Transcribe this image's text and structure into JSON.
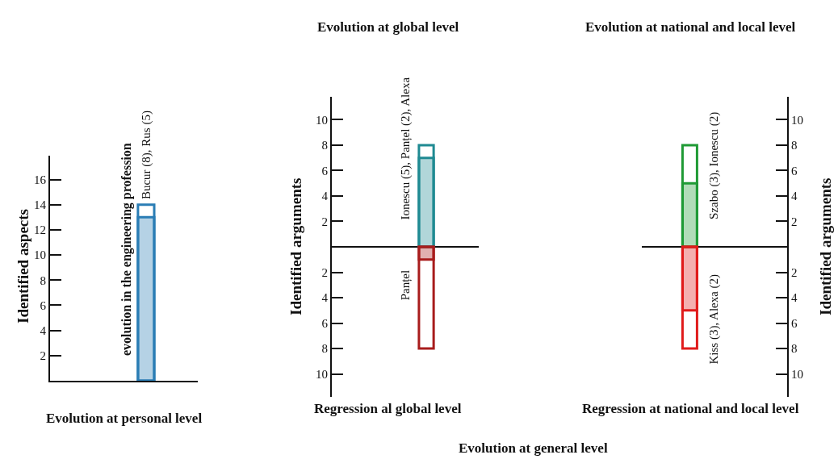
{
  "chart_data": [
    {
      "type": "bar",
      "xlabel": "Evolution at personal level",
      "ylabel": "Identified aspects",
      "categories": [
        null
      ],
      "ylim": [
        0,
        17.9
      ],
      "yticks": [
        2,
        4,
        6,
        8,
        10,
        12,
        14,
        16
      ],
      "tick_labels": "y",
      "grid": false,
      "legend": false,
      "annotations": [
        "evolution in the engineering profession"
      ],
      "series": [
        {
          "name": "Bucur (8), Rus (5)",
          "color": "#2a7db5",
          "values": [
            13
          ]
        },
        {
          "color": "#2a7db5",
          "values": [
            14
          ]
        }
      ]
    },
    {
      "type": "bar",
      "title": "Evolution at global level",
      "xlabel": "Regression al global level",
      "ylabel": "Identified arguments",
      "categories": [
        null
      ],
      "ylim": [
        -11.8,
        11.8
      ],
      "yticks": [
        {
          "value": -10,
          "label": "10"
        },
        {
          "value": -8,
          "label": "8"
        },
        {
          "value": -6,
          "label": "6"
        },
        {
          "value": -4,
          "label": "4"
        },
        {
          "value": -2,
          "label": "2"
        },
        2,
        4,
        6,
        8,
        10
      ],
      "tick_labels": "y",
      "grid": false,
      "legend": false,
      "series": [
        {
          "name": "Ionescu (5), Panțel (2), Alexa",
          "color": "#1f8a92",
          "values": [
            7
          ]
        },
        {
          "color": "#1f8a92",
          "values": [
            8
          ]
        },
        {
          "name": "Panțel",
          "color": "#a81c1c",
          "values": [
            -1
          ]
        },
        {
          "color": "#a81c1c",
          "values": [
            -8
          ]
        }
      ]
    },
    {
      "type": "bar",
      "title": "Evolution at national and local level",
      "xlabel": "Regression at national and local level",
      "ylabel": "Identified arguments",
      "categories": [
        null
      ],
      "ylim": [
        -11.8,
        11.8
      ],
      "yticks": [
        {
          "value": -10,
          "label": "10"
        },
        {
          "value": -8,
          "label": "8"
        },
        {
          "value": -6,
          "label": "6"
        },
        {
          "value": -4,
          "label": "4"
        },
        {
          "value": -2,
          "label": "2"
        },
        2,
        4,
        6,
        8,
        10
      ],
      "tick_labels": "y",
      "grid": false,
      "legend": false,
      "annotations": [
        "Evolution at general level"
      ],
      "series": [
        {
          "name": "Szabo (3), Ionescu (2)",
          "color": "#1f9a35",
          "values": [
            5
          ]
        },
        {
          "color": "#1f9a35",
          "values": [
            8
          ]
        },
        {
          "name": "Kiss (3), Alexa (2)",
          "color": "#e01b1b",
          "values": [
            -5
          ]
        },
        {
          "color": "#e01b1b",
          "values": [
            -8
          ]
        }
      ]
    }
  ]
}
